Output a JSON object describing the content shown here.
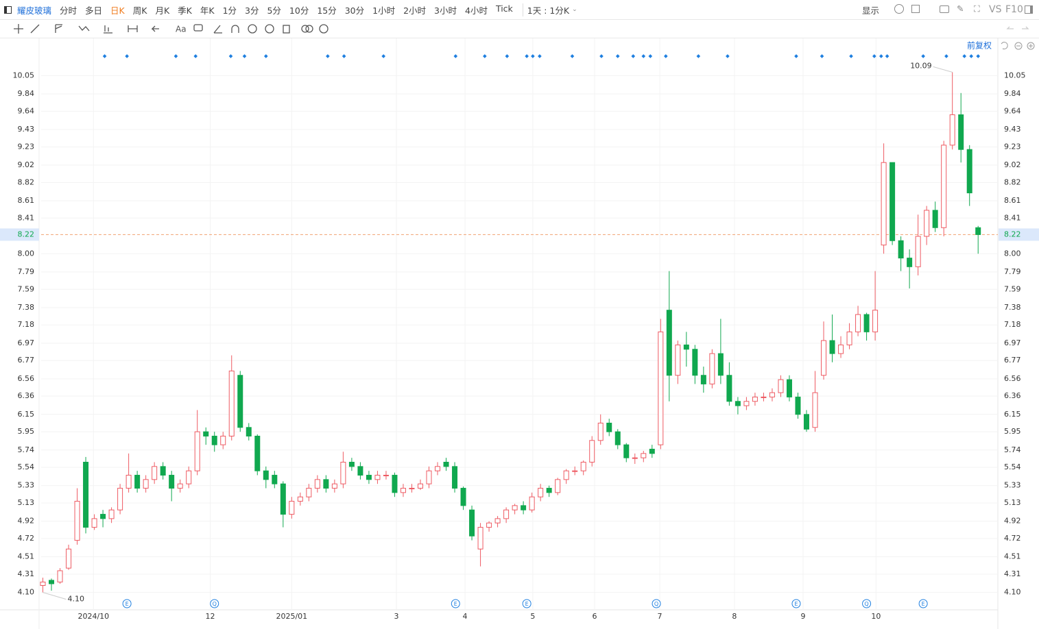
{
  "toolbar": {
    "stock": "耀皮玻璃",
    "periods": [
      "分时",
      "多日",
      "日K",
      "周K",
      "月K",
      "季K",
      "年K",
      "1分",
      "3分",
      "5分",
      "10分",
      "15分",
      "30分",
      "1小时",
      "2小时",
      "3小时",
      "4小时",
      "Tick"
    ],
    "active_index": 2,
    "interval": "1天 : 1分K",
    "display": "显示",
    "vs": "VS",
    "f10": "F10",
    "text_tool": "Aa"
  },
  "chart_data": {
    "type": "candlestick",
    "adjust_label": "前复权",
    "up_color": "#ee5a62",
    "down_color": "#10a84f",
    "open": [
      4.18,
      4.24,
      4.22,
      4.38,
      4.7,
      5.6,
      4.85,
      5.0,
      4.95,
      5.05,
      5.3,
      5.45,
      5.3,
      5.4,
      5.55,
      5.45,
      5.3,
      5.35,
      5.5,
      5.95,
      5.9,
      5.8,
      5.9,
      6.6,
      6.0,
      5.9,
      5.5,
      5.45,
      5.35,
      5.0,
      5.15,
      5.2,
      5.3,
      5.4,
      5.3,
      5.35,
      5.6,
      5.55,
      5.45,
      5.4,
      5.45,
      5.45,
      5.25,
      5.3,
      5.3,
      5.35,
      5.5,
      5.6,
      5.55,
      5.3,
      5.05,
      4.6,
      4.85,
      4.9,
      4.95,
      5.05,
      5.1,
      5.05,
      5.2,
      5.3,
      5.25,
      5.4,
      5.5,
      5.5,
      5.6,
      5.85,
      6.05,
      5.95,
      5.8,
      5.65,
      5.65,
      5.75,
      5.8,
      7.35,
      6.6,
      6.95,
      6.9,
      6.6,
      6.5,
      6.85,
      6.6,
      6.3,
      6.25,
      6.3,
      6.35,
      6.35,
      6.4,
      6.55,
      6.35,
      6.15,
      6.0,
      6.6,
      7.0,
      6.85,
      6.95,
      7.1,
      7.3,
      7.1,
      8.1,
      9.05,
      8.15,
      7.95,
      7.85,
      8.2,
      8.5,
      8.3,
      9.25,
      9.6,
      9.2,
      8.3
    ],
    "high": [
      4.27,
      4.26,
      4.38,
      4.65,
      5.3,
      5.66,
      5.0,
      5.05,
      5.08,
      5.35,
      5.7,
      5.5,
      5.45,
      5.6,
      5.6,
      5.5,
      5.4,
      5.55,
      6.2,
      6.0,
      5.95,
      5.95,
      6.83,
      6.65,
      6.05,
      5.92,
      5.55,
      5.5,
      5.38,
      5.2,
      5.25,
      5.35,
      5.45,
      5.45,
      5.4,
      5.72,
      5.65,
      5.6,
      5.5,
      5.5,
      5.5,
      5.48,
      5.35,
      5.35,
      5.4,
      5.55,
      5.6,
      5.65,
      5.6,
      5.32,
      5.1,
      4.9,
      4.92,
      4.98,
      5.08,
      5.12,
      5.15,
      5.25,
      5.35,
      5.33,
      5.42,
      5.52,
      5.55,
      5.62,
      5.9,
      6.15,
      6.1,
      5.98,
      5.82,
      5.7,
      5.73,
      5.8,
      7.25,
      7.8,
      7.0,
      7.1,
      6.95,
      6.7,
      6.9,
      7.25,
      6.75,
      6.35,
      6.35,
      6.4,
      6.4,
      6.45,
      6.6,
      6.6,
      6.4,
      6.2,
      6.65,
      7.22,
      7.3,
      7.05,
      7.2,
      7.4,
      7.32,
      7.8,
      9.27,
      9.05,
      8.2,
      8.05,
      8.45,
      8.55,
      8.6,
      9.3,
      10.09,
      9.85,
      9.25,
      8.32
    ],
    "low": [
      4.1,
      4.12,
      4.2,
      4.36,
      4.65,
      4.78,
      4.82,
      4.85,
      4.9,
      5.0,
      5.25,
      5.25,
      5.25,
      5.35,
      5.4,
      5.15,
      5.25,
      5.3,
      5.45,
      5.8,
      5.72,
      5.75,
      5.85,
      5.95,
      5.85,
      5.45,
      5.3,
      5.3,
      4.85,
      4.95,
      5.1,
      5.15,
      5.25,
      5.25,
      5.25,
      5.3,
      5.5,
      5.4,
      5.35,
      5.35,
      5.4,
      5.2,
      5.2,
      5.25,
      5.28,
      5.3,
      5.45,
      5.5,
      5.25,
      5.05,
      4.7,
      4.4,
      4.8,
      4.85,
      4.9,
      5.0,
      5.0,
      5.02,
      5.15,
      5.2,
      5.22,
      5.35,
      5.45,
      5.45,
      5.55,
      5.8,
      5.9,
      5.75,
      5.6,
      5.58,
      5.6,
      5.65,
      5.75,
      6.3,
      6.5,
      6.7,
      6.5,
      6.4,
      6.45,
      6.5,
      6.25,
      6.15,
      6.2,
      6.25,
      6.3,
      6.3,
      6.35,
      6.3,
      6.1,
      5.95,
      5.95,
      6.55,
      6.75,
      6.8,
      6.9,
      7.05,
      7.0,
      7.0,
      8.0,
      8.1,
      7.8,
      7.6,
      7.75,
      8.1,
      8.25,
      8.2,
      9.2,
      9.05,
      8.55,
      8.0
    ],
    "close": [
      4.22,
      4.2,
      4.35,
      4.6,
      5.15,
      4.85,
      4.95,
      4.95,
      5.05,
      5.3,
      5.45,
      5.3,
      5.4,
      5.55,
      5.45,
      5.3,
      5.35,
      5.5,
      5.95,
      5.9,
      5.8,
      5.9,
      6.65,
      6.0,
      5.9,
      5.5,
      5.4,
      5.35,
      5.0,
      5.15,
      5.2,
      5.3,
      5.4,
      5.3,
      5.35,
      5.6,
      5.55,
      5.45,
      5.4,
      5.45,
      5.45,
      5.25,
      5.3,
      5.3,
      5.35,
      5.5,
      5.55,
      5.55,
      5.3,
      5.1,
      4.75,
      4.85,
      4.9,
      4.95,
      5.05,
      5.1,
      5.05,
      5.2,
      5.3,
      5.25,
      5.4,
      5.5,
      5.5,
      5.6,
      5.85,
      6.05,
      5.95,
      5.8,
      5.65,
      5.65,
      5.7,
      5.7,
      7.1,
      6.6,
      6.95,
      6.9,
      6.6,
      6.5,
      6.85,
      6.6,
      6.3,
      6.25,
      6.3,
      6.35,
      6.35,
      6.4,
      6.55,
      6.35,
      6.15,
      5.98,
      6.4,
      7.0,
      6.85,
      6.95,
      7.1,
      7.3,
      7.1,
      7.35,
      9.05,
      8.15,
      7.95,
      7.85,
      8.2,
      8.5,
      8.3,
      9.25,
      9.6,
      9.2,
      8.7,
      8.22
    ],
    "max_label": "10.09",
    "min_label": "4.10",
    "last_price": {
      "value": 8.22,
      "label": "8.22"
    },
    "xlim": [
      -0.2,
      111.3
    ],
    "ylim": [
      3.9,
      10.29
    ],
    "yticks": [
      {
        "value": 4.1,
        "label": "4.10"
      },
      {
        "value": 4.31,
        "label": "4.31"
      },
      {
        "value": 4.51,
        "label": "4.51"
      },
      {
        "value": 4.72,
        "label": "4.72"
      },
      {
        "value": 4.92,
        "label": "4.92"
      },
      {
        "value": 5.13,
        "label": "5.13"
      },
      {
        "value": 5.33,
        "label": "5.33"
      },
      {
        "value": 5.54,
        "label": "5.54"
      },
      {
        "value": 5.74,
        "label": "5.74"
      },
      {
        "value": 5.95,
        "label": "5.95"
      },
      {
        "value": 6.15,
        "label": "6.15"
      },
      {
        "value": 6.36,
        "label": "6.36"
      },
      {
        "value": 6.56,
        "label": "6.56"
      },
      {
        "value": 6.77,
        "label": "6.77"
      },
      {
        "value": 6.97,
        "label": "6.97"
      },
      {
        "value": 7.18,
        "label": "7.18"
      },
      {
        "value": 7.38,
        "label": "7.38"
      },
      {
        "value": 7.59,
        "label": "7.59"
      },
      {
        "value": 7.79,
        "label": "7.79"
      },
      {
        "value": 8.0,
        "label": "8.00"
      },
      {
        "value": 8.41,
        "label": "8.41"
      },
      {
        "value": 8.61,
        "label": "8.61"
      },
      {
        "value": 8.82,
        "label": "8.82"
      },
      {
        "value": 9.02,
        "label": "9.02"
      },
      {
        "value": 9.23,
        "label": "9.23"
      },
      {
        "value": 9.43,
        "label": "9.43"
      },
      {
        "value": 9.64,
        "label": "9.64"
      },
      {
        "value": 9.84,
        "label": "9.84"
      },
      {
        "value": 10.05,
        "label": "10.05"
      }
    ],
    "xticks": [
      {
        "value": 5.9,
        "label": "2024/10"
      },
      {
        "value": 19.5,
        "label": "12"
      },
      {
        "value": 29.0,
        "label": "2025/01"
      },
      {
        "value": 41.2,
        "label": "3"
      },
      {
        "value": 49.2,
        "label": "4"
      },
      {
        "value": 57.1,
        "label": "5"
      },
      {
        "value": 64.3,
        "label": "6"
      },
      {
        "value": 71.9,
        "label": "7"
      },
      {
        "value": 80.6,
        "label": "8"
      },
      {
        "value": 88.6,
        "label": "9"
      },
      {
        "value": 97.1,
        "label": "10"
      }
    ],
    "events": [
      {
        "x": 9.8,
        "label": "E"
      },
      {
        "x": 20.0,
        "label": "Q"
      },
      {
        "x": 48.1,
        "label": "E"
      },
      {
        "x": 56.4,
        "label": "E"
      },
      {
        "x": 71.5,
        "label": "Q"
      },
      {
        "x": 87.8,
        "label": "E"
      },
      {
        "x": 96.0,
        "label": "Q"
      },
      {
        "x": 102.6,
        "label": "E"
      }
    ],
    "markers": [
      7.2,
      9.8,
      15.5,
      17.8,
      21.9,
      23.5,
      26.0,
      33.2,
      35.1,
      39.7,
      48.1,
      51.5,
      54.1,
      56.4,
      57.1,
      57.9,
      61.7,
      65.1,
      67.0,
      68.8,
      70.0,
      70.8,
      72.6,
      76.4,
      79.8,
      87.8,
      90.8,
      94.2,
      96.9,
      97.7,
      98.4,
      102.6,
      105.3,
      107.4,
      108.2,
      109.0
    ]
  }
}
